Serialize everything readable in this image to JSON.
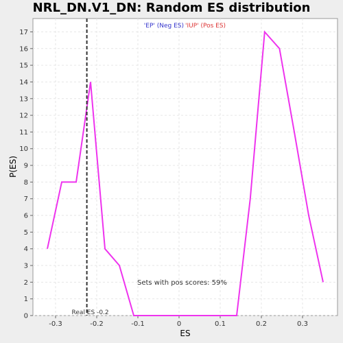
{
  "chart_data": {
    "type": "line",
    "title": "NRL_DN.V1_DN: Random ES distribution",
    "xlabel": "ES",
    "ylabel": "P(ES)",
    "xlim": [
      -0.355,
      0.385
    ],
    "ylim": [
      0,
      17.8
    ],
    "x_ticks": [
      -0.3,
      -0.2,
      -0.1,
      0,
      0.1,
      0.2,
      0.3
    ],
    "x_tick_labels": [
      "-0.3",
      "-0.2",
      "-0.1",
      "0",
      "0.1",
      "0.2",
      "0.3"
    ],
    "y_ticks": [
      0,
      1,
      2,
      3,
      4,
      5,
      6,
      7,
      8,
      9,
      10,
      11,
      12,
      13,
      14,
      15,
      16,
      17
    ],
    "legend": {
      "neg": "'EP' (Neg ES)",
      "pos": "'IUP' (Pos ES)",
      "neg_color": "#3333cc",
      "pos_color": "#dd3333"
    },
    "series_color": "#ee33ee",
    "x": [
      -0.32,
      -0.285,
      -0.25,
      -0.215,
      -0.18,
      -0.145,
      -0.11,
      -0.075,
      -0.04,
      0.0,
      0.035,
      0.07,
      0.105,
      0.14,
      0.173,
      0.208,
      0.244,
      0.28,
      0.315,
      0.35
    ],
    "y": [
      4,
      8,
      8,
      14,
      4,
      3,
      0,
      0,
      0,
      0,
      0,
      0,
      0,
      0,
      7,
      17,
      16,
      11,
      6,
      2
    ],
    "real_es": -0.224,
    "real_es_label": "Real ES -0.2",
    "annotation": "Sets with pos scores: 59%"
  }
}
